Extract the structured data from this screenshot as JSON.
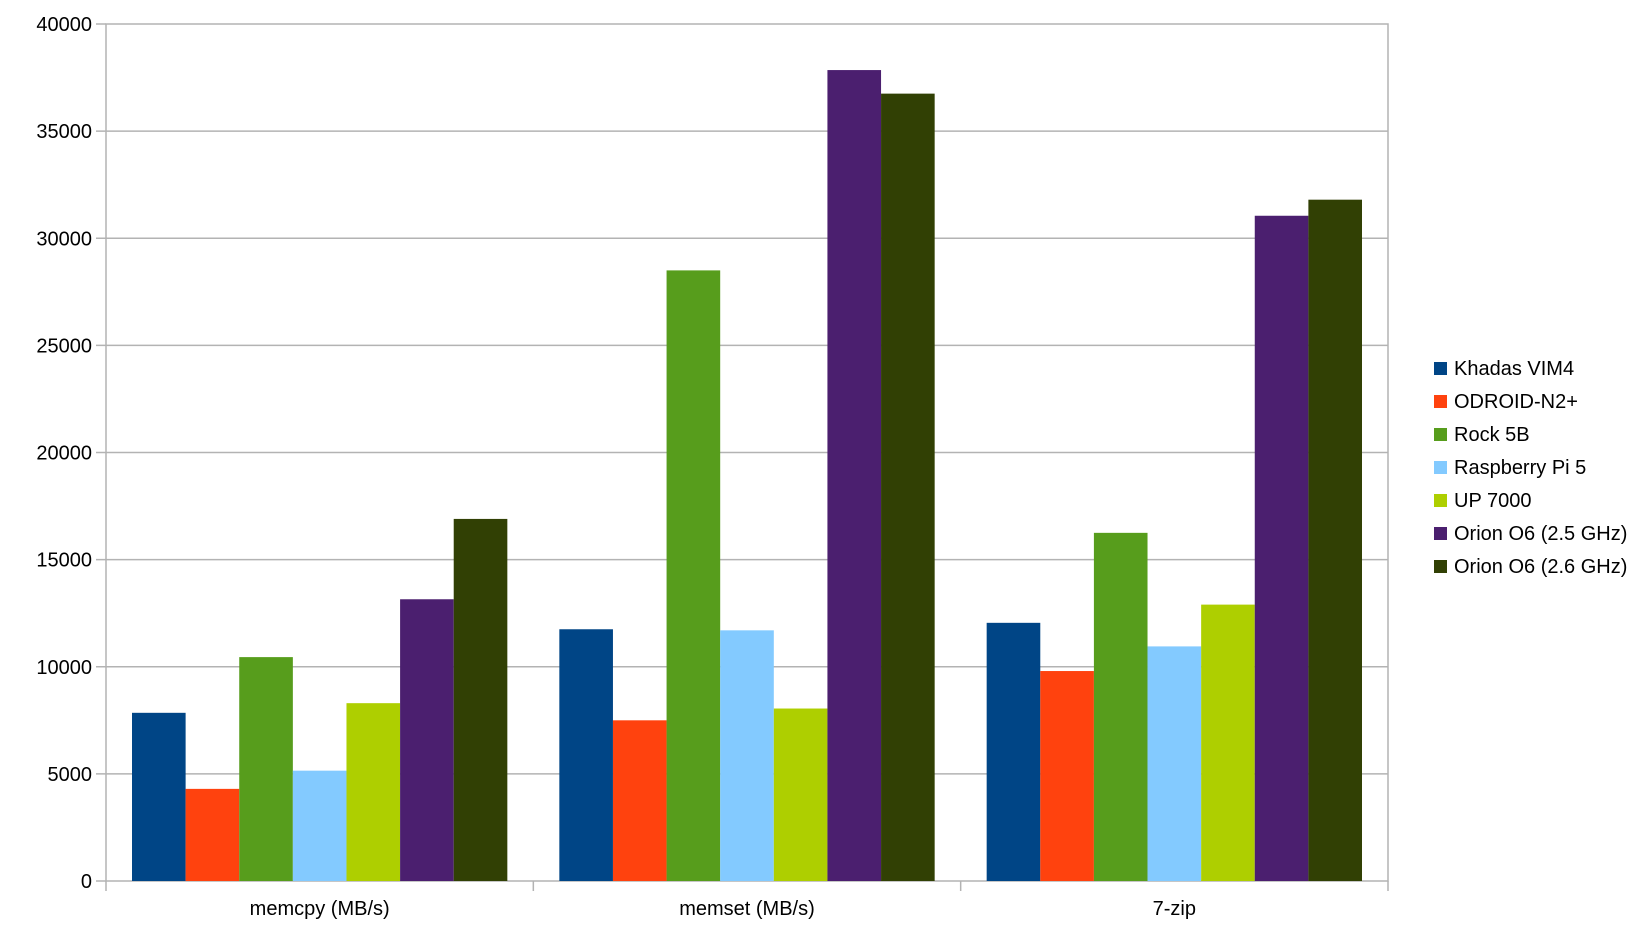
{
  "chart_data": {
    "type": "bar",
    "title": "",
    "xlabel": "",
    "ylabel": "",
    "categories": [
      "memcpy (MB/s)",
      "memset (MB/s)",
      "7-zip"
    ],
    "ylim": [
      0,
      40000
    ],
    "yticks": [
      0,
      5000,
      10000,
      15000,
      20000,
      25000,
      30000,
      35000,
      40000
    ],
    "grid": true,
    "legend_position": "right",
    "series": [
      {
        "name": "Khadas VIM4",
        "color": "#004586",
        "values": [
          7850,
          11750,
          12050
        ]
      },
      {
        "name": "ODROID-N2+",
        "color": "#ff420e",
        "values": [
          4300,
          7500,
          9800
        ]
      },
      {
        "name": "Rock 5B",
        "color": "#579d1c",
        "values": [
          10450,
          28500,
          16250
        ]
      },
      {
        "name": "Raspberry Pi 5",
        "color": "#83caff",
        "values": [
          5150,
          11700,
          10950
        ]
      },
      {
        "name": "UP 7000",
        "color": "#aecf00",
        "values": [
          8300,
          8050,
          12900
        ]
      },
      {
        "name": "Orion O6 (2.5 GHz)",
        "color": "#4b1f6f",
        "values": [
          13150,
          37850,
          31050
        ]
      },
      {
        "name": "Orion O6 (2.6 GHz)",
        "color": "#314004",
        "values": [
          16900,
          36750,
          31800
        ]
      }
    ]
  }
}
